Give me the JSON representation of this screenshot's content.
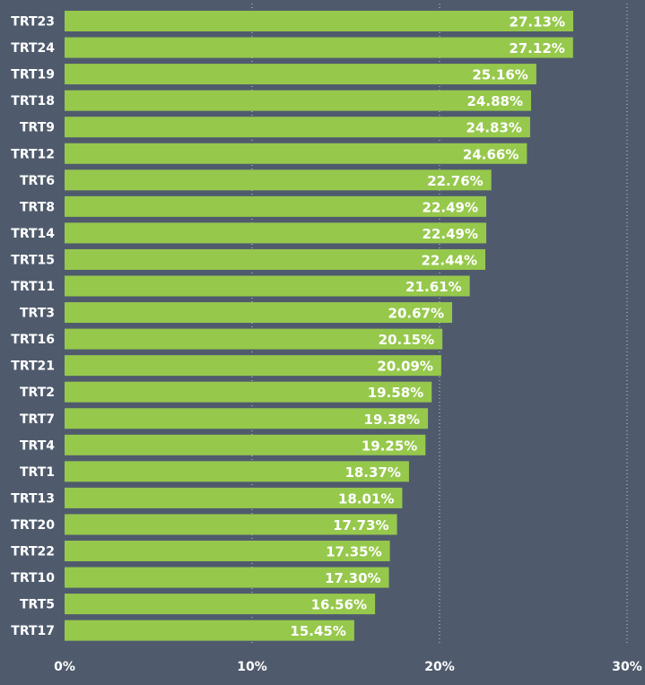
{
  "chart_data": {
    "type": "bar",
    "orientation": "horizontal",
    "title": "",
    "xlabel": "",
    "ylabel": "",
    "xlim": [
      0,
      30
    ],
    "ticks": [
      "0%",
      "10%",
      "20%",
      "30%"
    ],
    "tick_values": [
      0,
      10,
      20,
      30
    ],
    "grid": "vertical-dotted",
    "colors": {
      "background": "#4f5b6d",
      "bar": "#96c84c",
      "text": "#ffffff",
      "grid": "#c9ced6"
    },
    "categories": [
      "TRT23",
      "TRT24",
      "TRT19",
      "TRT18",
      "TRT9",
      "TRT12",
      "TRT6",
      "TRT8",
      "TRT14",
      "TRT15",
      "TRT11",
      "TRT3",
      "TRT16",
      "TRT21",
      "TRT2",
      "TRT7",
      "TRT4",
      "TRT1",
      "TRT13",
      "TRT20",
      "TRT22",
      "TRT10",
      "TRT5",
      "TRT17"
    ],
    "values": [
      27.13,
      27.12,
      25.16,
      24.88,
      24.83,
      24.66,
      22.76,
      22.49,
      22.49,
      22.44,
      21.61,
      20.67,
      20.15,
      20.09,
      19.58,
      19.38,
      19.25,
      18.37,
      18.01,
      17.73,
      17.35,
      17.3,
      16.56,
      15.45
    ],
    "value_labels": [
      "27.13%",
      "27.12%",
      "25.16%",
      "24.88%",
      "24.83%",
      "24.66%",
      "22.76%",
      "22.49%",
      "22.49%",
      "22.44%",
      "21.61%",
      "20.67%",
      "20.15%",
      "20.09%",
      "19.58%",
      "19.38%",
      "19.25%",
      "18.37%",
      "18.01%",
      "17.73%",
      "17.35%",
      "17.30%",
      "16.56%",
      "15.45%"
    ]
  }
}
